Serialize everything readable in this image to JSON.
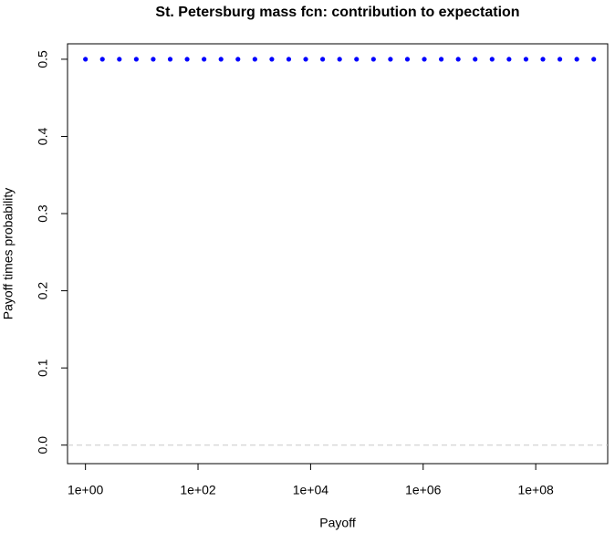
{
  "chart_data": {
    "type": "scatter",
    "title": "St. Petersburg mass fcn: contribution to expectation",
    "x_label": "Payoff",
    "y_label": "Payoff times probability",
    "x": [
      1,
      2,
      4,
      8,
      16,
      32,
      64,
      128,
      256,
      512,
      1024,
      2048,
      4096,
      8192,
      16384,
      32768,
      65536,
      131072,
      262144,
      524288,
      1048576,
      2097152,
      4194304,
      8388608,
      16777216,
      33554432,
      67108864,
      134217728,
      268435456,
      536870912,
      1073741824
    ],
    "values": [
      0.5,
      0.5,
      0.5,
      0.5,
      0.5,
      0.5,
      0.5,
      0.5,
      0.5,
      0.5,
      0.5,
      0.5,
      0.5,
      0.5,
      0.5,
      0.5,
      0.5,
      0.5,
      0.5,
      0.5,
      0.5,
      0.5,
      0.5,
      0.5,
      0.5,
      0.5,
      0.5,
      0.5,
      0.5,
      0.5,
      0.5
    ],
    "color": "#0000ff",
    "x_log": true,
    "xlim": [
      0.48,
      1900000000
    ],
    "xticks": [
      {
        "value": 1,
        "label": "1e+00"
      },
      {
        "value": 100,
        "label": "1e+02"
      },
      {
        "value": 10000,
        "label": "1e+04"
      },
      {
        "value": 1000000,
        "label": "1e+06"
      },
      {
        "value": 100000000,
        "label": "1e+08"
      }
    ],
    "ylim": [
      -0.024,
      0.52
    ],
    "yticks": [
      {
        "value": 0,
        "label": "0.0"
      },
      {
        "value": 0.1,
        "label": "0.1"
      },
      {
        "value": 0.2,
        "label": "0.2"
      },
      {
        "value": 0.3,
        "label": "0.3"
      },
      {
        "value": 0.4,
        "label": "0.4"
      },
      {
        "value": 0.5,
        "label": "0.5"
      }
    ],
    "reference_line": 0
  }
}
